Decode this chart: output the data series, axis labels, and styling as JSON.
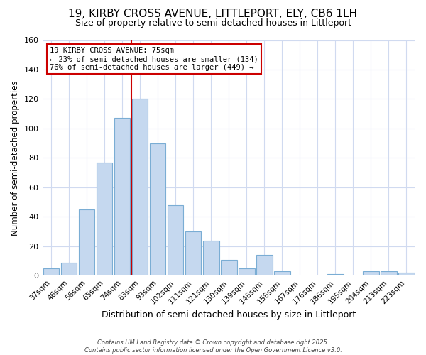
{
  "title": "19, KIRBY CROSS AVENUE, LITTLEPORT, ELY, CB6 1LH",
  "subtitle": "Size of property relative to semi-detached houses in Littleport",
  "xlabel": "Distribution of semi-detached houses by size in Littleport",
  "ylabel_full": "Number of semi-detached properties",
  "categories": [
    "37sqm",
    "46sqm",
    "56sqm",
    "65sqm",
    "74sqm",
    "83sqm",
    "93sqm",
    "102sqm",
    "111sqm",
    "121sqm",
    "130sqm",
    "139sqm",
    "148sqm",
    "158sqm",
    "167sqm",
    "176sqm",
    "186sqm",
    "195sqm",
    "204sqm",
    "213sqm",
    "223sqm"
  ],
  "values": [
    5,
    9,
    45,
    77,
    107,
    120,
    90,
    48,
    30,
    24,
    11,
    5,
    14,
    3,
    0,
    0,
    1,
    0,
    3,
    3,
    2
  ],
  "bar_color": "#c5d8ef",
  "bar_edge_color": "#7aadd4",
  "bar_edge_width": 0.8,
  "vline_color": "#cc0000",
  "vline_pos": 4.5,
  "annotation_line1": "19 KIRBY CROSS AVENUE: 75sqm",
  "annotation_line2": "← 23% of semi-detached houses are smaller (134)",
  "annotation_line3": "76% of semi-detached houses are larger (449) →",
  "ylim": [
    0,
    160
  ],
  "yticks": [
    0,
    20,
    40,
    60,
    80,
    100,
    120,
    140,
    160
  ],
  "background_color": "#ffffff",
  "plot_bg_color": "#ffffff",
  "grid_color": "#d0daf0",
  "title_fontsize": 11,
  "subtitle_fontsize": 9,
  "xlabel_fontsize": 9,
  "ylabel_fontsize": 8.5,
  "footer": "Contains HM Land Registry data © Crown copyright and database right 2025.\nContains public sector information licensed under the Open Government Licence v3.0."
}
